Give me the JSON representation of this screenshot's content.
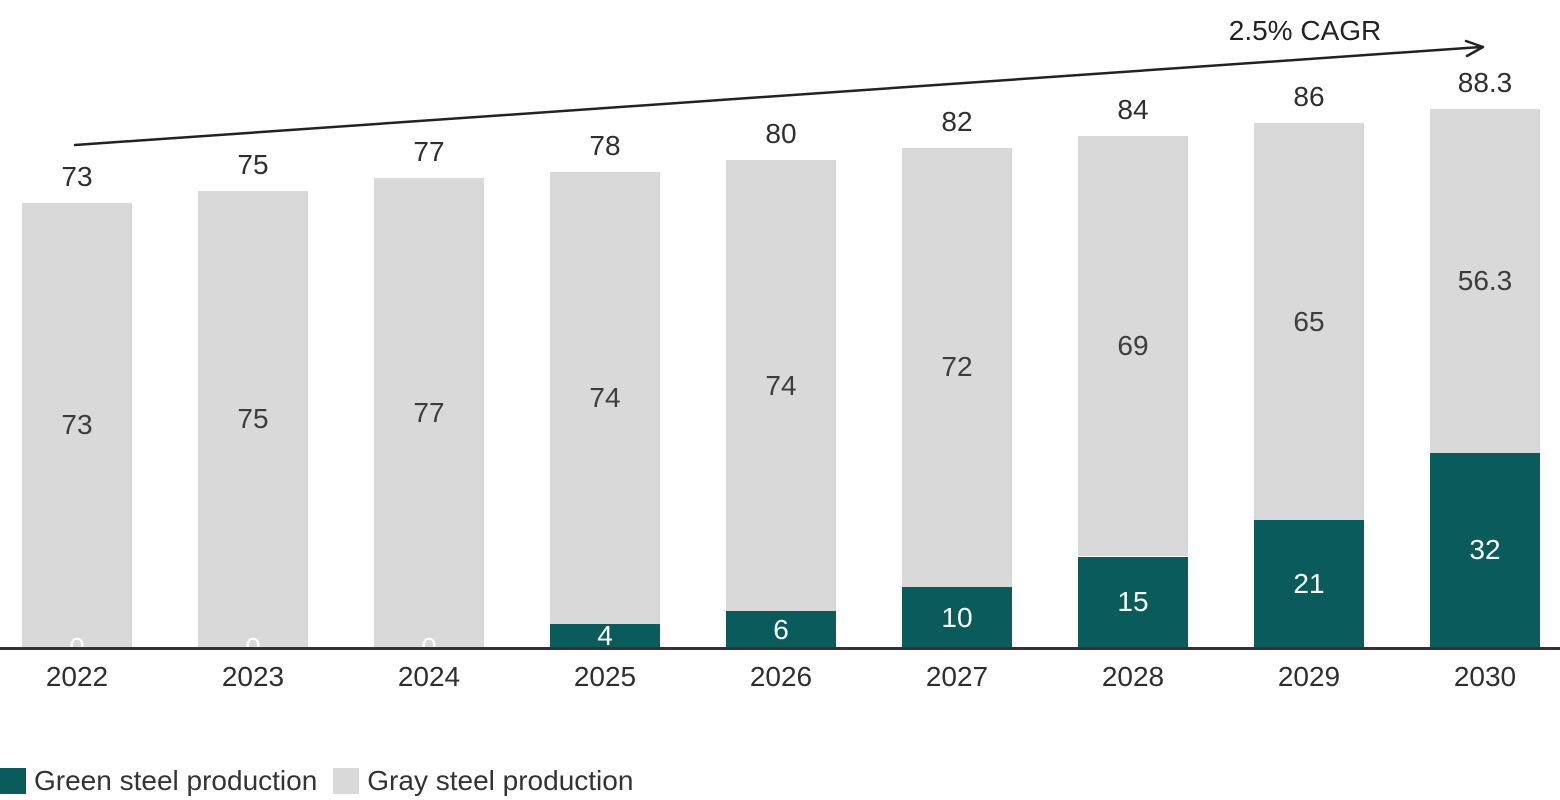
{
  "page": {
    "background": "#ffffff"
  },
  "annotation": {
    "label": "2.5% CAGR",
    "color": "#222222"
  },
  "legend": {
    "items": [
      {
        "label": "Green steel production",
        "color": "#0a5c5c"
      },
      {
        "label": "Gray steel production",
        "color": "#d9d9d9"
      }
    ]
  },
  "chart_data": {
    "type": "bar",
    "stacked": true,
    "title": "",
    "xlabel": "",
    "ylabel": "",
    "categories": [
      "2022",
      "2023",
      "2024",
      "2025",
      "2026",
      "2027",
      "2028",
      "2029",
      "2030"
    ],
    "series": [
      {
        "name": "Green steel production",
        "color": "#0a5c5c",
        "label_color": "#ffffff",
        "values": [
          0,
          0,
          0,
          4,
          6,
          10,
          15,
          21,
          32
        ],
        "labels": [
          "0",
          "0",
          "0",
          "4",
          "6",
          "10",
          "15",
          "21",
          "32"
        ]
      },
      {
        "name": "Gray steel production",
        "color": "#d9d9d9",
        "label_color": "#3d3d3d",
        "values": [
          73,
          75,
          77,
          74,
          74,
          72,
          69,
          65,
          56.3
        ],
        "labels": [
          "73",
          "75",
          "77",
          "74",
          "74",
          "72",
          "69",
          "65",
          "56.3"
        ]
      }
    ],
    "totals": [
      "73",
      "75",
      "77",
      "78",
      "80",
      "82",
      "84",
      "86",
      "88.3"
    ],
    "annotation": "2.5% CAGR",
    "ylim": [
      0,
      95
    ],
    "grid": false,
    "legend_position": "bottom-left",
    "axis_color": "#333333"
  }
}
